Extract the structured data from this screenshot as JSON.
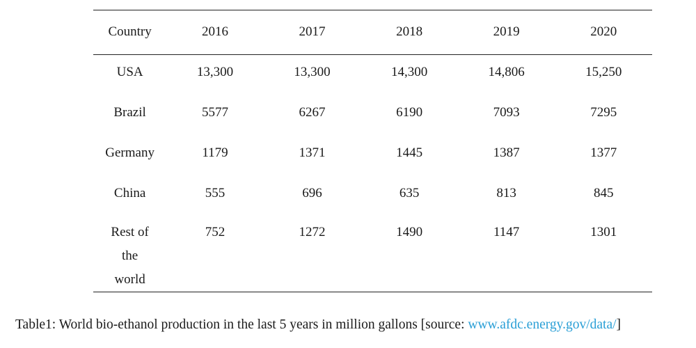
{
  "table": {
    "headers": [
      "Country",
      "2016",
      "2017",
      "2018",
      "2019",
      "2020"
    ],
    "rows": [
      {
        "country": "USA",
        "values": [
          "13,300",
          "13,300",
          "14,300",
          "14,806",
          "15,250"
        ]
      },
      {
        "country": "Brazil",
        "values": [
          "5577",
          "6267",
          "6190",
          "7093",
          "7295"
        ]
      },
      {
        "country": "Germany",
        "values": [
          "1179",
          "1371",
          "1445",
          "1387",
          "1377"
        ]
      },
      {
        "country": "China",
        "values": [
          "555",
          "696",
          "635",
          "813",
          "845"
        ]
      },
      {
        "country_lines": [
          "Rest of",
          "the",
          "world"
        ],
        "values": [
          "752",
          "1272",
          "1490",
          "1147",
          "1301"
        ]
      }
    ]
  },
  "caption": {
    "prefix": "Table1: World bio-ethanol production in the last 5 years in million gallons [source: ",
    "link": "www.afdc.energy.gov/data/",
    "suffix": "]",
    "link_color": "#2a9fd6"
  }
}
